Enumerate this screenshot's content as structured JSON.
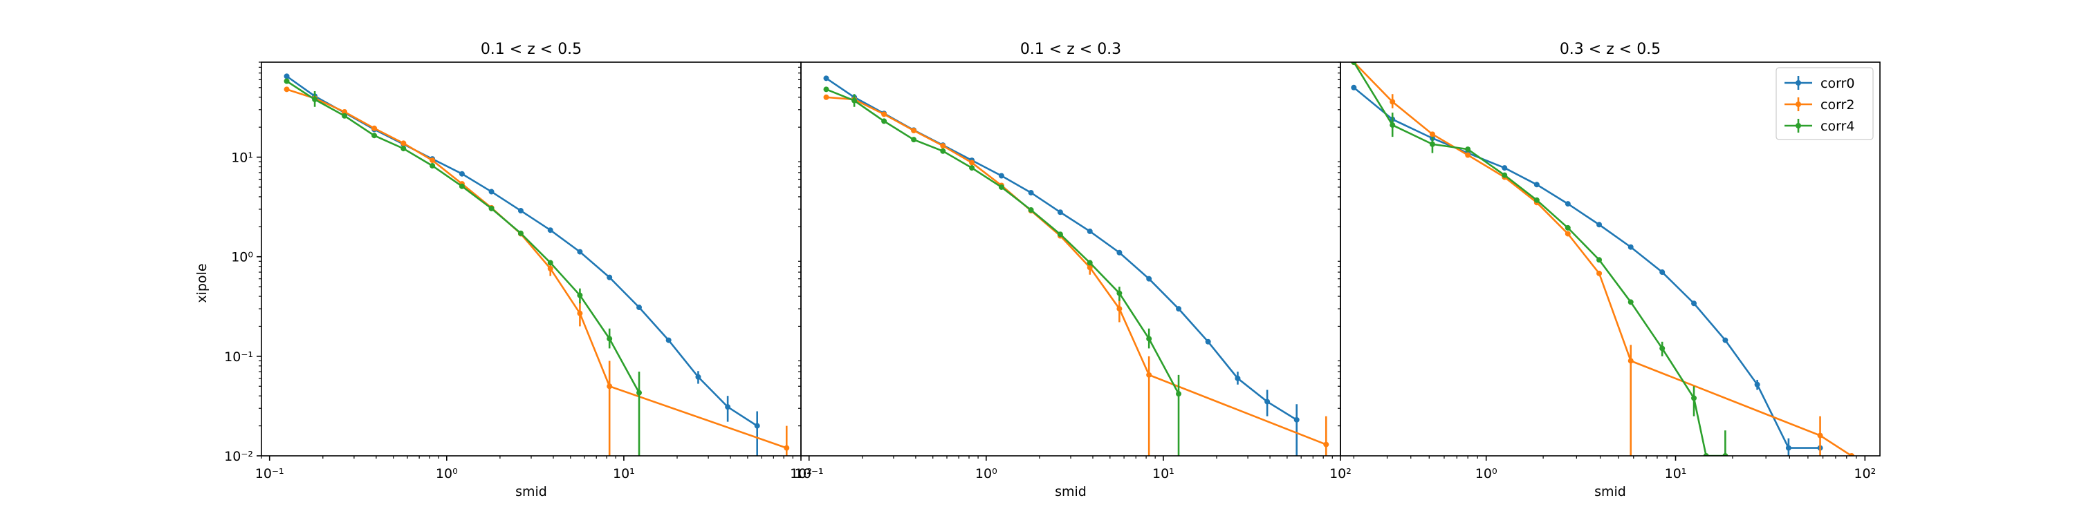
{
  "figure": {
    "shared_ylabel": "xipole"
  },
  "chart_data": [
    {
      "type": "line",
      "title": "0.1 < z < 0.5",
      "xlabel": "smid",
      "ylabel": "xipole",
      "xscale": "log",
      "yscale": "log",
      "xlim": [
        0.09,
        100
      ],
      "ylim": [
        0.01,
        90
      ],
      "x_ticks": [
        {
          "value": 0.1,
          "label": "10⁻¹"
        },
        {
          "value": 1,
          "label": "10⁰"
        },
        {
          "value": 10,
          "label": "10¹"
        },
        {
          "value": 100,
          "label": "10²"
        }
      ],
      "y_ticks": [
        {
          "value": 0.01,
          "label": "10⁻²"
        },
        {
          "value": 0.1,
          "label": "10⁻¹"
        },
        {
          "value": 1,
          "label": "10⁰"
        },
        {
          "value": 10,
          "label": "10¹"
        }
      ],
      "series": [
        {
          "name": "corr0",
          "color": "#1f77b4",
          "points": [
            {
              "x": 0.125,
              "y": 65
            },
            {
              "x": 0.18,
              "y": 41
            },
            {
              "x": 0.265,
              "y": 28
            },
            {
              "x": 0.39,
              "y": 19
            },
            {
              "x": 0.57,
              "y": 13.5
            },
            {
              "x": 0.83,
              "y": 9.6
            },
            {
              "x": 1.22,
              "y": 6.8
            },
            {
              "x": 1.79,
              "y": 4.5
            },
            {
              "x": 2.62,
              "y": 2.9
            },
            {
              "x": 3.85,
              "y": 1.85
            },
            {
              "x": 5.65,
              "y": 1.12
            },
            {
              "x": 8.3,
              "y": 0.62
            },
            {
              "x": 12.2,
              "y": 0.31
            },
            {
              "x": 17.9,
              "y": 0.145
            },
            {
              "x": 26.3,
              "y": 0.062,
              "err": [
                0.053,
                0.071
              ]
            },
            {
              "x": 38.6,
              "y": 0.031,
              "err": [
                0.022,
                0.04
              ]
            },
            {
              "x": 56.6,
              "y": 0.02,
              "err": [
                0.01,
                0.028
              ]
            }
          ]
        },
        {
          "name": "corr2",
          "color": "#ff7f0e",
          "points": [
            {
              "x": 0.125,
              "y": 48
            },
            {
              "x": 0.18,
              "y": 39
            },
            {
              "x": 0.265,
              "y": 28.5
            },
            {
              "x": 0.39,
              "y": 19.5
            },
            {
              "x": 0.57,
              "y": 13.8
            },
            {
              "x": 0.83,
              "y": 9.3
            },
            {
              "x": 1.22,
              "y": 5.4
            },
            {
              "x": 1.79,
              "y": 3.1
            },
            {
              "x": 2.62,
              "y": 1.7
            },
            {
              "x": 3.85,
              "y": 0.76,
              "err": [
                0.64,
                0.9
              ]
            },
            {
              "x": 5.65,
              "y": 0.27,
              "err": [
                0.2,
                0.35
              ]
            },
            {
              "x": 8.3,
              "y": 0.05,
              "err": [
                0.01,
                0.09
              ]
            },
            {
              "x": 83,
              "y": 0.012,
              "err": [
                0.01,
                0.02
              ]
            }
          ]
        },
        {
          "name": "corr4",
          "color": "#2ca02c",
          "points": [
            {
              "x": 0.125,
              "y": 58
            },
            {
              "x": 0.18,
              "y": 38,
              "err": [
                32,
                46
              ]
            },
            {
              "x": 0.265,
              "y": 26
            },
            {
              "x": 0.39,
              "y": 16.5
            },
            {
              "x": 0.57,
              "y": 12.2
            },
            {
              "x": 0.83,
              "y": 8.2
            },
            {
              "x": 1.22,
              "y": 5.1
            },
            {
              "x": 1.79,
              "y": 3.05
            },
            {
              "x": 2.62,
              "y": 1.72
            },
            {
              "x": 3.85,
              "y": 0.87
            },
            {
              "x": 5.65,
              "y": 0.41,
              "err": [
                0.34,
                0.48
              ]
            },
            {
              "x": 8.3,
              "y": 0.15,
              "err": [
                0.12,
                0.19
              ]
            },
            {
              "x": 12.2,
              "y": 0.043,
              "err": [
                0.01,
                0.07
              ]
            }
          ]
        }
      ]
    },
    {
      "type": "line",
      "title": "0.1 < z < 0.3",
      "xlabel": "smid",
      "ylabel": "",
      "xscale": "log",
      "yscale": "log",
      "xlim": [
        0.09,
        100
      ],
      "ylim": [
        0.01,
        90
      ],
      "x_ticks": [
        {
          "value": 0.1,
          "label": "10⁻¹"
        },
        {
          "value": 1,
          "label": "10⁰"
        },
        {
          "value": 10,
          "label": "10¹"
        },
        {
          "value": 100,
          "label": "10²"
        }
      ],
      "y_ticks": [],
      "series": [
        {
          "name": "corr0",
          "color": "#1f77b4",
          "points": [
            {
              "x": 0.125,
              "y": 62
            },
            {
              "x": 0.18,
              "y": 40
            },
            {
              "x": 0.265,
              "y": 27.5
            },
            {
              "x": 0.39,
              "y": 18.7
            },
            {
              "x": 0.57,
              "y": 13.2
            },
            {
              "x": 0.83,
              "y": 9.3
            },
            {
              "x": 1.22,
              "y": 6.5
            },
            {
              "x": 1.79,
              "y": 4.4
            },
            {
              "x": 2.62,
              "y": 2.8
            },
            {
              "x": 3.85,
              "y": 1.8
            },
            {
              "x": 5.65,
              "y": 1.1
            },
            {
              "x": 8.3,
              "y": 0.6
            },
            {
              "x": 12.2,
              "y": 0.3
            },
            {
              "x": 17.9,
              "y": 0.14
            },
            {
              "x": 26.3,
              "y": 0.06,
              "err": [
                0.052,
                0.07
              ]
            },
            {
              "x": 38.6,
              "y": 0.035,
              "err": [
                0.025,
                0.046
              ]
            },
            {
              "x": 56.6,
              "y": 0.023,
              "err": [
                0.01,
                0.033
              ]
            }
          ]
        },
        {
          "name": "corr2",
          "color": "#ff7f0e",
          "points": [
            {
              "x": 0.125,
              "y": 40
            },
            {
              "x": 0.18,
              "y": 38
            },
            {
              "x": 0.265,
              "y": 27
            },
            {
              "x": 0.39,
              "y": 18.5
            },
            {
              "x": 0.57,
              "y": 13
            },
            {
              "x": 0.83,
              "y": 8.8
            },
            {
              "x": 1.22,
              "y": 5.2
            },
            {
              "x": 1.79,
              "y": 2.9
            },
            {
              "x": 2.62,
              "y": 1.62
            },
            {
              "x": 3.85,
              "y": 0.78,
              "err": [
                0.66,
                0.9
              ]
            },
            {
              "x": 5.65,
              "y": 0.3,
              "err": [
                0.22,
                0.38
              ]
            },
            {
              "x": 8.3,
              "y": 0.065,
              "err": [
                0.01,
                0.1
              ]
            },
            {
              "x": 83,
              "y": 0.013,
              "err": [
                0.01,
                0.025
              ]
            }
          ]
        },
        {
          "name": "corr4",
          "color": "#2ca02c",
          "points": [
            {
              "x": 0.125,
              "y": 48
            },
            {
              "x": 0.18,
              "y": 37,
              "err": [
                32,
                43
              ]
            },
            {
              "x": 0.265,
              "y": 23
            },
            {
              "x": 0.39,
              "y": 15
            },
            {
              "x": 0.57,
              "y": 11.5
            },
            {
              "x": 0.83,
              "y": 7.8
            },
            {
              "x": 1.22,
              "y": 5
            },
            {
              "x": 1.79,
              "y": 2.95
            },
            {
              "x": 2.62,
              "y": 1.68
            },
            {
              "x": 3.85,
              "y": 0.87
            },
            {
              "x": 5.65,
              "y": 0.43,
              "err": [
                0.36,
                0.5
              ]
            },
            {
              "x": 8.3,
              "y": 0.15,
              "err": [
                0.12,
                0.19
              ]
            },
            {
              "x": 12.2,
              "y": 0.042,
              "err": [
                0.01,
                0.065
              ]
            }
          ]
        }
      ]
    },
    {
      "type": "line",
      "title": "0.3 < z < 0.5",
      "xlabel": "smid",
      "ylabel": "",
      "xscale": "log",
      "yscale": "log",
      "xlim": [
        0.17,
        120
      ],
      "ylim": [
        0.01,
        90
      ],
      "x_ticks": [
        {
          "value": 1,
          "label": "10⁰"
        },
        {
          "value": 10,
          "label": "10¹"
        },
        {
          "value": 100,
          "label": "10²"
        }
      ],
      "y_ticks": [],
      "legend": {
        "position": "top-right",
        "entries": [
          "corr0",
          "corr2",
          "corr4"
        ]
      },
      "series": [
        {
          "name": "corr0",
          "color": "#1f77b4",
          "points": [
            {
              "x": 0.2,
              "y": 50
            },
            {
              "x": 0.32,
              "y": 24
            },
            {
              "x": 0.52,
              "y": 15.5
            },
            {
              "x": 0.8,
              "y": 11
            },
            {
              "x": 1.25,
              "y": 7.8
            },
            {
              "x": 1.85,
              "y": 5.3
            },
            {
              "x": 2.7,
              "y": 3.4
            },
            {
              "x": 3.95,
              "y": 2.1
            },
            {
              "x": 5.8,
              "y": 1.25
            },
            {
              "x": 8.5,
              "y": 0.7
            },
            {
              "x": 12.5,
              "y": 0.34
            },
            {
              "x": 18.3,
              "y": 0.145
            },
            {
              "x": 27,
              "y": 0.052,
              "err": [
                0.046,
                0.058
              ]
            },
            {
              "x": 39.5,
              "y": 0.012,
              "err": [
                0.01,
                0.015
              ]
            },
            {
              "x": 58,
              "y": 0.012
            }
          ]
        },
        {
          "name": "corr2",
          "color": "#ff7f0e",
          "points": [
            {
              "x": 0.2,
              "y": 150
            },
            {
              "x": 0.32,
              "y": 36,
              "err": [
                31,
                43
              ]
            },
            {
              "x": 0.52,
              "y": 17
            },
            {
              "x": 0.8,
              "y": 10.5
            },
            {
              "x": 1.25,
              "y": 6.3
            },
            {
              "x": 1.85,
              "y": 3.5
            },
            {
              "x": 2.7,
              "y": 1.7
            },
            {
              "x": 3.95,
              "y": 0.68
            },
            {
              "x": 5.8,
              "y": 0.09,
              "err": [
                0.01,
                0.13
              ]
            },
            {
              "x": 58,
              "y": 0.016,
              "err": [
                0.01,
                0.025
              ]
            },
            {
              "x": 85,
              "y": 0.01
            }
          ]
        },
        {
          "name": "corr4",
          "color": "#2ca02c",
          "points": [
            {
              "x": 0.2,
              "y": 120
            },
            {
              "x": 0.32,
              "y": 21,
              "err": [
                16,
                28
              ]
            },
            {
              "x": 0.52,
              "y": 13.5,
              "err": [
                11,
                16
              ]
            },
            {
              "x": 0.8,
              "y": 12
            },
            {
              "x": 1.25,
              "y": 6.6
            },
            {
              "x": 1.85,
              "y": 3.7
            },
            {
              "x": 2.7,
              "y": 1.95
            },
            {
              "x": 3.95,
              "y": 0.93
            },
            {
              "x": 5.8,
              "y": 0.35
            },
            {
              "x": 8.5,
              "y": 0.12,
              "err": [
                0.1,
                0.14
              ]
            },
            {
              "x": 12.5,
              "y": 0.038,
              "err": [
                0.025,
                0.05
              ]
            },
            {
              "x": 14.5,
              "y": 0.01
            },
            {
              "x": 18.3,
              "y": 0.01,
              "err": [
                0.01,
                0.018
              ]
            }
          ]
        }
      ]
    }
  ]
}
